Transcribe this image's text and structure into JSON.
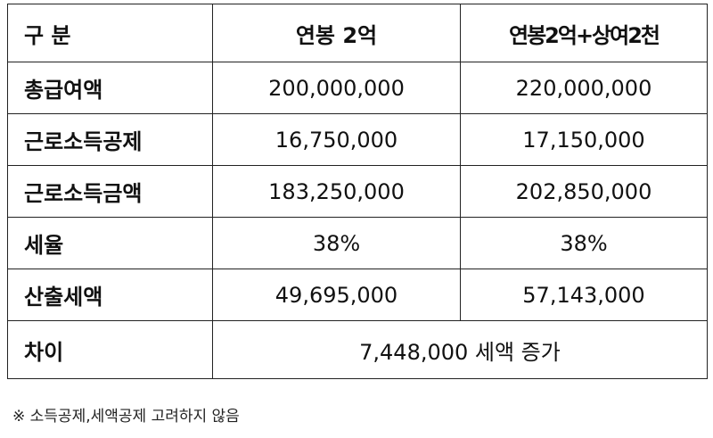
{
  "header": {
    "col1": "구 분",
    "col2": "연봉 2억",
    "col3": "연봉2억+상여2천"
  },
  "rows": [
    {
      "label": "총급여액",
      "v1": "200,000,000",
      "v2": "220,000,000"
    },
    {
      "label": "근로소득공제",
      "v1": "16,750,000",
      "v2": "17,150,000"
    },
    {
      "label": "근로소득금액",
      "v1": "183,250,000",
      "v2": "202,850,000"
    },
    {
      "label": "세율",
      "v1": "38%",
      "v2": "38%"
    },
    {
      "label": "산출세액",
      "v1": "49,695,000",
      "v2": "57,143,000"
    }
  ],
  "diff": {
    "label": "차이",
    "value": "7,448,000 세액 증가"
  },
  "note": "※ 소득공제,세액공제 고려하지 않음"
}
